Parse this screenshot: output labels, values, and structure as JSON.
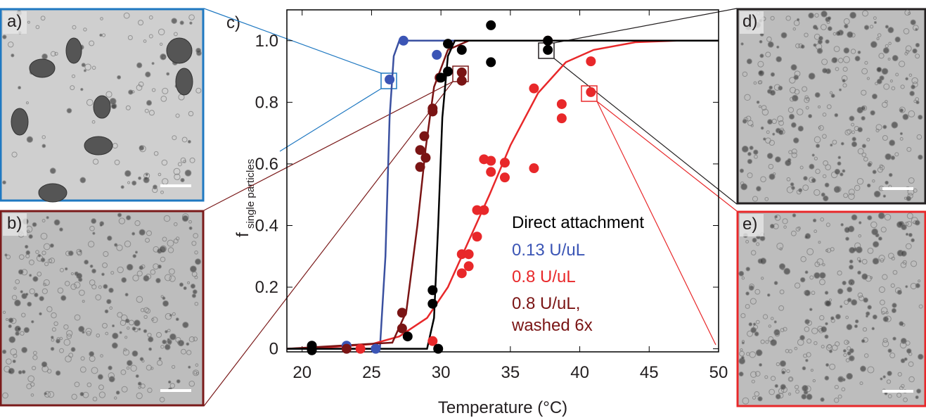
{
  "chart_data": {
    "type": "scatter",
    "panel_labels": [
      "a)",
      "b)",
      "c)",
      "d)",
      "e)"
    ],
    "x_label": "Temperature (°C)",
    "y_label": "f",
    "y_label_sub": "single particles",
    "legend_title": "Direct attachment",
    "xlim": [
      18.9,
      50
    ],
    "ylim": [
      -0.01,
      1.1
    ],
    "xticks": [
      20,
      25,
      30,
      35,
      40,
      45,
      50
    ],
    "yticks": [
      0,
      0.2,
      0.4,
      0.6,
      0.8,
      {
        "value": 1,
        "label": "1.0"
      }
    ],
    "series": [
      {
        "name": "0.13 U/uL",
        "color": "#3b55b5",
        "x": [
          26.3,
          27.3,
          29.7,
          23.2,
          25.3
        ],
        "values": [
          0.874,
          1.0,
          0.954,
          0.01,
          0
        ]
      },
      {
        "name": "0.8 U/uL",
        "color": "#e8282a",
        "x": [
          24.2,
          29.4,
          31.5,
          31.5,
          32.0,
          32.0,
          32.6,
          32.6,
          33.1,
          33.1,
          33.6,
          33.6,
          34.6,
          34.6,
          36.7,
          36.7,
          38.7,
          38.7,
          40.8,
          40.8
        ],
        "values": [
          0,
          0.025,
          0.245,
          0.307,
          0.307,
          0.268,
          0.364,
          0.45,
          0.45,
          0.615,
          0.61,
          0.574,
          0.604,
          0.556,
          0.845,
          0.586,
          0.794,
          0.748,
          0.933,
          0.833
        ]
      },
      {
        "name": "0.8 U/uL, washed 6x",
        "color": "#7a1414",
        "x": [
          23.2,
          27.2,
          27.2,
          28.5,
          28.5,
          28.9,
          28.8,
          29.4,
          29.4,
          29.9,
          31.5,
          31.5,
          37.7
        ],
        "values": [
          0,
          0.117,
          0.066,
          0.645,
          0.59,
          0.62,
          0.69,
          0.77,
          0.78,
          0.88,
          0.897,
          0.87,
          1.0
        ]
      },
      {
        "color": "#000000",
        "x": [
          20.7,
          20.7,
          27.6,
          29.8,
          29.4,
          29.4,
          30.0,
          30.5,
          30.5,
          31.5,
          33.6,
          33.6,
          37.7,
          37.7
        ],
        "values": [
          0.01,
          -0.005,
          0.04,
          0,
          0.146,
          0.19,
          0.88,
          0.99,
          0.9,
          0.97,
          1.05,
          0.93,
          0.97,
          1.0
        ]
      }
    ],
    "fits": [
      {
        "color": "#3a50a0",
        "x": [
          18.9,
          25.6,
          26.0,
          26.3,
          26.6,
          27.0,
          50
        ],
        "values": [
          0,
          0,
          0.3,
          0.75,
          0.95,
          1.0,
          1.0
        ]
      },
      {
        "color": "#e8282a",
        "x": [
          18.9,
          22,
          25,
          27,
          29,
          30.5,
          32,
          33.5,
          35,
          37,
          39,
          41,
          44,
          47,
          50
        ],
        "values": [
          0,
          0.005,
          0.015,
          0.04,
          0.1,
          0.2,
          0.35,
          0.5,
          0.66,
          0.83,
          0.93,
          0.97,
          0.995,
          1.0,
          1.0
        ]
      },
      {
        "color": "#7a1414",
        "x": [
          18.9,
          26.5,
          27.5,
          28.3,
          28.9,
          29.5,
          30.5,
          32,
          50
        ],
        "values": [
          0,
          0.02,
          0.12,
          0.4,
          0.65,
          0.85,
          0.97,
          1.0,
          1.0
        ]
      },
      {
        "color": "#000000",
        "x": [
          18.9,
          29.0,
          29.5,
          29.8,
          30.1,
          30.5,
          31.0,
          50
        ],
        "values": [
          0,
          0,
          0.1,
          0.4,
          0.75,
          0.95,
          1.0,
          1.0
        ]
      }
    ]
  }
}
